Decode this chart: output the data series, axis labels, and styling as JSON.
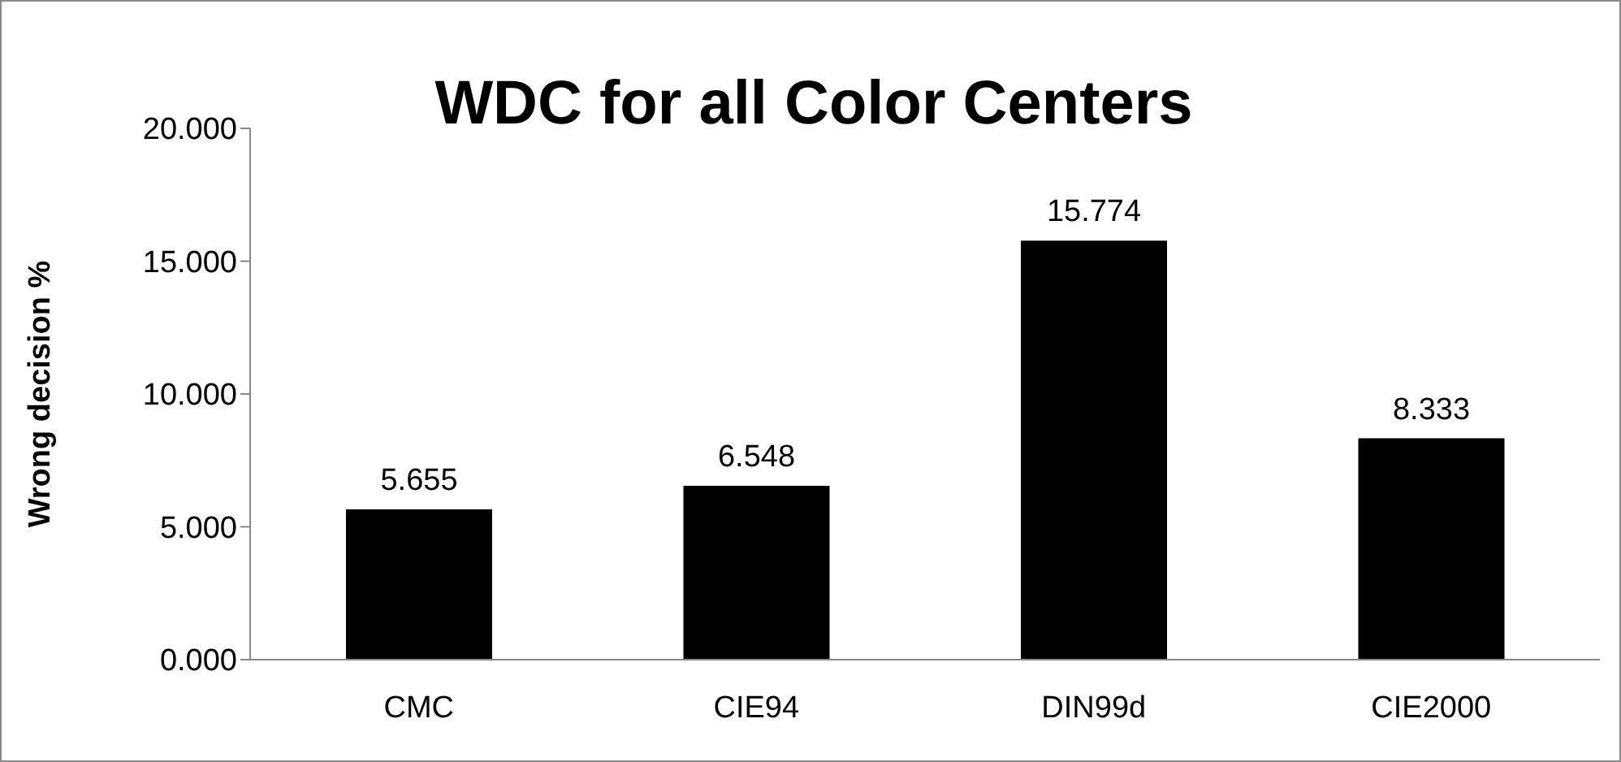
{
  "chart_data": {
    "type": "bar",
    "title": "WDC for all Color Centers",
    "ylabel": "Wrong decision %",
    "categories": [
      "CMC",
      "CIE94",
      "DIN99d",
      "CIE2000"
    ],
    "values": [
      5.655,
      6.548,
      15.774,
      8.333
    ],
    "color": "#000000",
    "ylim": [
      0,
      20
    ],
    "yticks": [
      {
        "value": 0,
        "label": "0.000"
      },
      {
        "value": 5,
        "label": "5.000"
      },
      {
        "value": 10,
        "label": "10.000"
      },
      {
        "value": 15,
        "label": "15.000"
      },
      {
        "value": 20,
        "label": "20.000"
      }
    ],
    "data_labels": true,
    "grid": false
  }
}
